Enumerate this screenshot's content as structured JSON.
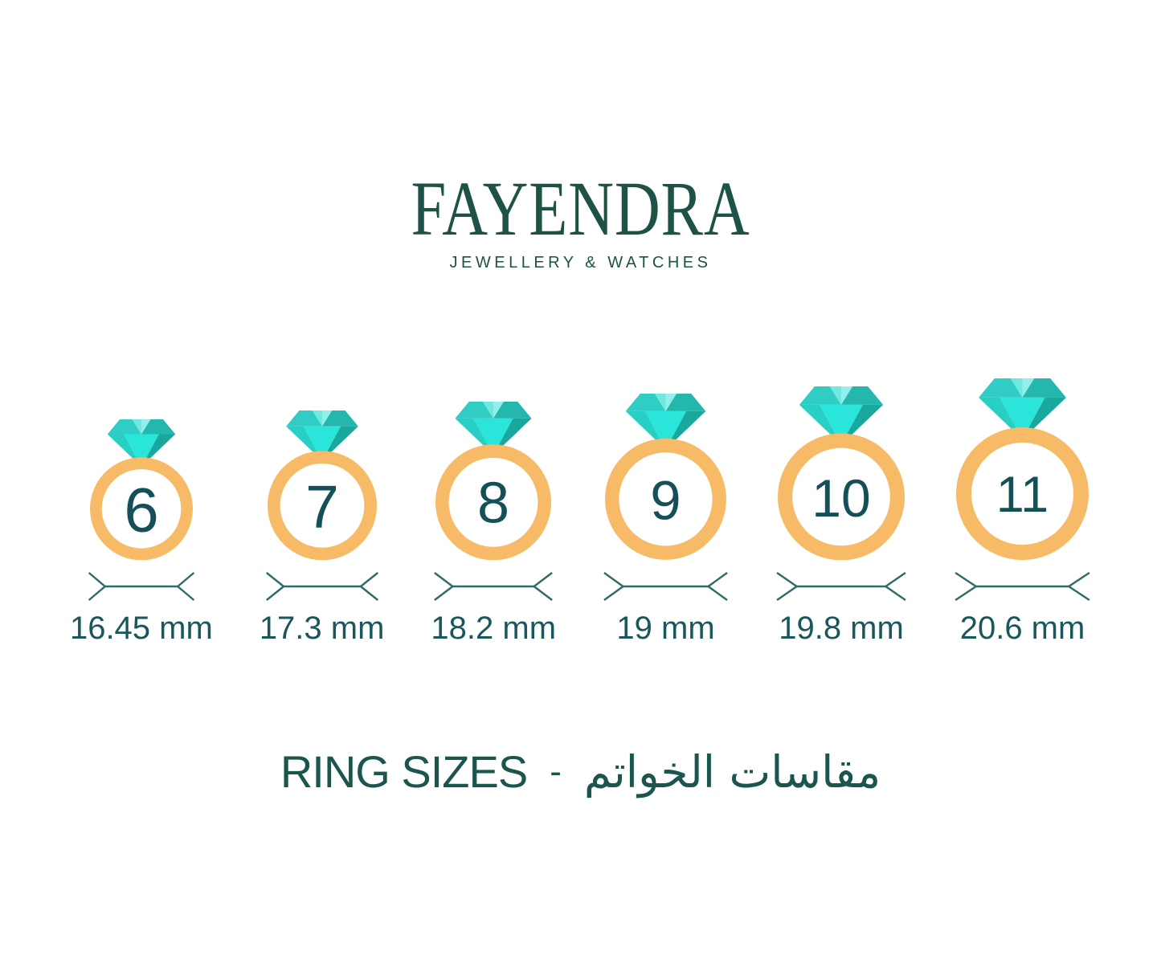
{
  "brand": {
    "name": "FAYENDRA",
    "tagline": "JEWELLERY & WATCHES"
  },
  "title": {
    "en": "RING SIZES",
    "separator": "-",
    "ar": "مقاسات الخواتم"
  },
  "rings": [
    {
      "size": "6",
      "diameter_label": "16.45 mm"
    },
    {
      "size": "7",
      "diameter_label": "17.3 mm"
    },
    {
      "size": "8",
      "diameter_label": "18.2 mm"
    },
    {
      "size": "9",
      "diameter_label": "19 mm"
    },
    {
      "size": "10",
      "diameter_label": "19.8 mm"
    },
    {
      "size": "11",
      "diameter_label": "20.6 mm"
    }
  ],
  "chart_data": {
    "type": "table",
    "title": "RING SIZES - مقاسات الخواتم",
    "columns": [
      "ring_size",
      "inner_diameter_mm"
    ],
    "rows": [
      [
        6,
        16.45
      ],
      [
        7,
        17.3
      ],
      [
        8,
        18.2
      ],
      [
        9,
        19
      ],
      [
        10,
        19.8
      ],
      [
        11,
        20.6
      ]
    ]
  },
  "colors": {
    "background": "#FFFFFF",
    "brand_green": "#1E5247",
    "number_teal": "#155059",
    "label_teal": "#1A575C",
    "line_teal": "#2B6B68",
    "title_teal": "#1B564E",
    "band_gold": "#F7BB68",
    "dia_mid": "#2FCDC3",
    "dia_light": "#6FE8E0",
    "dia_lighter": "#93EFE9",
    "dia_dark1": "#23B7AD",
    "dia_mid2": "#28CFC4",
    "dia_bright": "#2AE6DA",
    "dia_dark2": "#18A89E"
  },
  "icons": {
    "ring": "diamond-ring-icon",
    "measure": "diameter-measure-line"
  }
}
